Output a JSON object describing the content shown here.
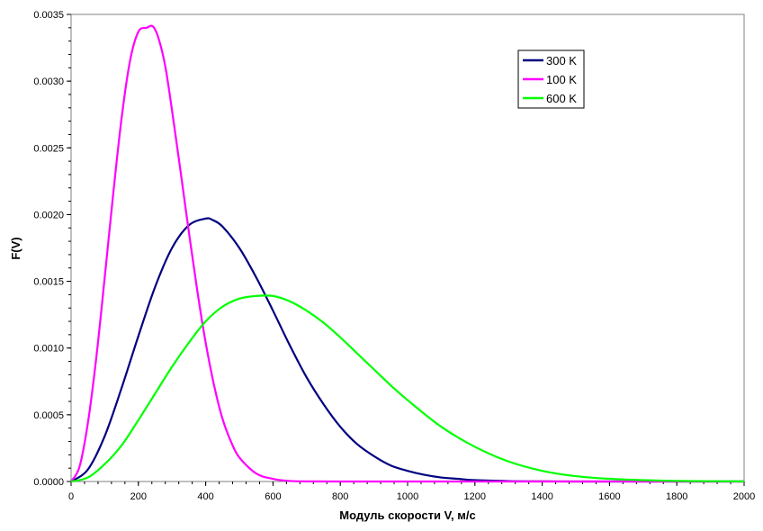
{
  "chart_data": {
    "type": "line",
    "xlabel": "Модуль скорости V, м/с",
    "ylabel": "F(V)",
    "xlim": [
      0,
      2000
    ],
    "ylim": [
      0,
      0.0035
    ],
    "xticks": [
      0,
      200,
      400,
      600,
      800,
      1000,
      1200,
      1400,
      1600,
      1800,
      2000
    ],
    "yticks": [
      "0.0000",
      "0.0005",
      "0.0010",
      "0.0015",
      "0.0020",
      "0.0025",
      "0.0030",
      "0.0035"
    ],
    "grid": false,
    "legend_position": "top-right",
    "series": [
      {
        "name": "300 K",
        "color": "#000080",
        "x": [
          0,
          50,
          100,
          150,
          200,
          250,
          300,
          350,
          400,
          420,
          450,
          500,
          550,
          600,
          650,
          700,
          750,
          800,
          850,
          900,
          950,
          1000,
          1050,
          1100,
          1150,
          1200,
          1300,
          1400,
          1500,
          1600,
          1800,
          2000
        ],
        "y": [
          0,
          9e-05,
          0.00034,
          0.0007,
          0.00109,
          0.00146,
          0.00175,
          0.00192,
          0.00197,
          0.00196,
          0.00191,
          0.00175,
          0.00153,
          0.00128,
          0.00102,
          0.00078,
          0.00058,
          0.00041,
          0.00028,
          0.00019,
          0.00012,
          8e-05,
          5e-05,
          3e-05,
          2e-05,
          1e-05,
          3e-06,
          1e-06,
          0,
          0,
          0,
          0
        ]
      },
      {
        "name": "100 K",
        "color": "#FF00FF",
        "x": [
          0,
          25,
          50,
          75,
          100,
          125,
          150,
          175,
          200,
          225,
          243,
          260,
          280,
          300,
          325,
          350,
          375,
          400,
          425,
          450,
          475,
          500,
          550,
          600,
          650,
          700,
          800,
          1000,
          1500,
          2000
        ],
        "y": [
          0,
          0.00011,
          0.00044,
          0.00093,
          0.00153,
          0.00215,
          0.00272,
          0.00315,
          0.00337,
          0.0034,
          0.00341,
          0.00332,
          0.00311,
          0.00278,
          0.00233,
          0.00187,
          0.00143,
          0.00104,
          0.00072,
          0.00047,
          0.0003,
          0.00018,
          6e-05,
          2e-05,
          4e-06,
          1e-06,
          0,
          0,
          0,
          0
        ]
      },
      {
        "name": "600 K",
        "color": "#00FF00",
        "x": [
          0,
          50,
          100,
          150,
          200,
          250,
          300,
          350,
          400,
          450,
          500,
          550,
          600,
          650,
          700,
          750,
          800,
          850,
          900,
          950,
          1000,
          1100,
          1200,
          1300,
          1400,
          1500,
          1600,
          1700,
          1800,
          1900,
          2000
        ],
        "y": [
          0,
          3e-05,
          0.00013,
          0.00027,
          0.00046,
          0.00066,
          0.00086,
          0.00104,
          0.0012,
          0.00131,
          0.00137,
          0.00139,
          0.00139,
          0.00135,
          0.00128,
          0.00119,
          0.00108,
          0.00096,
          0.00084,
          0.00072,
          0.00061,
          0.00041,
          0.00026,
          0.00015,
          8e-05,
          4e-05,
          2e-05,
          1e-05,
          4e-06,
          2e-06,
          1e-06
        ]
      }
    ]
  }
}
